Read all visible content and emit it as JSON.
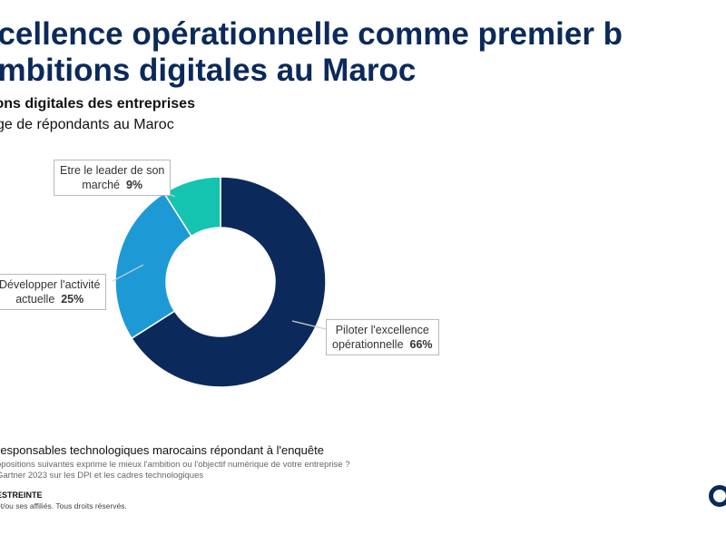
{
  "header": {
    "title_line1": "xcellence opérationnelle comme premier b",
    "title_line2": "ambitions digitales au Maroc",
    "subtitle": "ions digitales des entreprises",
    "subsubtitle": "ge de répondants au Maroc"
  },
  "chart_data": {
    "type": "pie",
    "donut": true,
    "title": "",
    "categories": [
      "Piloter l'excellence opérationnelle",
      "Développer l'activité actuelle",
      "Etre le leader de son marché"
    ],
    "values": [
      66,
      25,
      9
    ],
    "colors": [
      "#0b2a5b",
      "#1d9ad6",
      "#14c3b0"
    ],
    "labels": [
      {
        "line1": "Piloter l'excellence",
        "line2": "opérationnelle",
        "pct": "66%"
      },
      {
        "line1": "Développer l'activité",
        "line2": "actuelle",
        "pct": "25%"
      },
      {
        "line1": "Etre le leader de son",
        "line2": "marché",
        "pct": "9%"
      }
    ]
  },
  "footer": {
    "base": "responsables technologiques marocains répondant à l'enquête",
    "question": "opositions suivantes exprime le mieux l'ambition ou l'objectif numérique de votre entreprise ?",
    "source": "Gartner 2023 sur les DPI et les cadres technologiques",
    "classification": "ESTREINTE",
    "rights": "et/ou ses affiliés. Tous droits réservés."
  },
  "logo": {
    "name": "gartner-logo-mark"
  }
}
